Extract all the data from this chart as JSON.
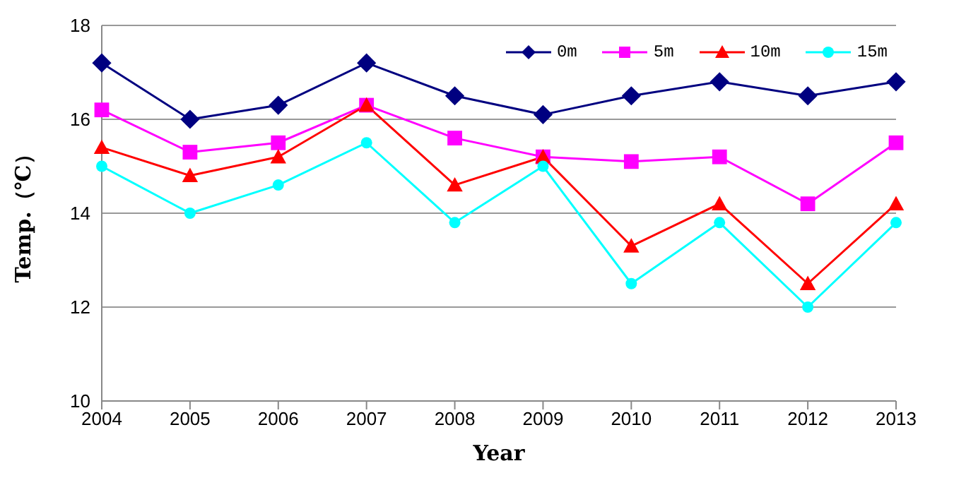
{
  "chart_data": {
    "type": "line",
    "xlabel": "Year",
    "ylabel": "Temp.（℃）",
    "categories": [
      "2004",
      "2005",
      "2006",
      "2007",
      "2008",
      "2009",
      "2010",
      "2011",
      "2012",
      "2013"
    ],
    "series": [
      {
        "name": "0m",
        "color": "#000080",
        "marker": "diamond",
        "values": [
          17.2,
          16.0,
          16.3,
          17.2,
          16.5,
          16.1,
          16.5,
          16.8,
          16.5,
          16.8
        ]
      },
      {
        "name": "5m",
        "color": "#ff00ff",
        "marker": "square",
        "values": [
          16.2,
          15.3,
          15.5,
          16.3,
          15.6,
          15.2,
          15.1,
          15.2,
          14.2,
          15.5
        ]
      },
      {
        "name": "10m",
        "color": "#ff0000",
        "marker": "triangle",
        "values": [
          15.4,
          14.8,
          15.2,
          16.3,
          14.6,
          15.2,
          13.3,
          14.2,
          12.5,
          14.2
        ]
      },
      {
        "name": "15m",
        "color": "#00ffff",
        "marker": "circle",
        "values": [
          15.0,
          14.0,
          14.6,
          15.5,
          13.8,
          15.0,
          12.5,
          13.8,
          12.0,
          13.8
        ]
      }
    ],
    "ylim": [
      10,
      18
    ],
    "yticks": [
      10,
      12,
      14,
      16,
      18
    ],
    "grid": "y",
    "legend": "top right",
    "line_style": "solid"
  }
}
